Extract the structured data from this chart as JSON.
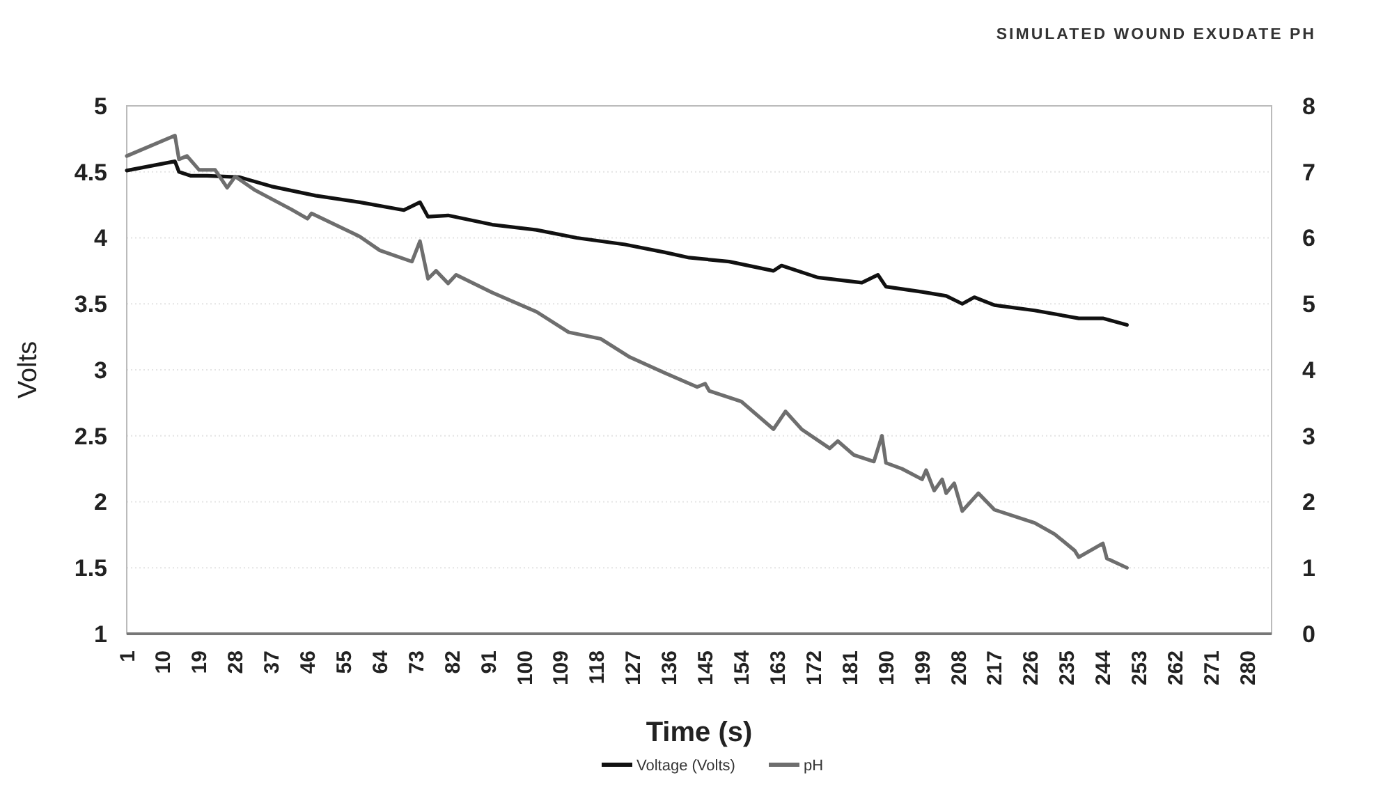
{
  "chart_data": {
    "type": "line",
    "title": "SIMULATED WOUND EXUDATE PH",
    "xlabel": "Time (s)",
    "ylabel": "Volts",
    "xlim": [
      1,
      286
    ],
    "xticks": [
      1,
      10,
      19,
      28,
      37,
      46,
      55,
      64,
      73,
      82,
      91,
      100,
      109,
      118,
      127,
      136,
      145,
      154,
      163,
      172,
      181,
      190,
      199,
      208,
      217,
      226,
      235,
      244,
      253,
      262,
      271,
      280
    ],
    "ylim": [
      1,
      5
    ],
    "yticks": [
      1,
      1.5,
      2,
      2.5,
      3,
      3.5,
      4,
      4.5,
      5
    ],
    "y2lim": [
      0,
      8
    ],
    "y2ticks": [
      0,
      1,
      2,
      3,
      4,
      5,
      6,
      7,
      8
    ],
    "grid": "y",
    "legend": "bottom",
    "marker": "none",
    "line_style": "solid",
    "series": [
      {
        "name": "Voltage (Volts)",
        "color": "#111111",
        "x": [
          1,
          13,
          14,
          17,
          21,
          29,
          37,
          48,
          59,
          70,
          74,
          76,
          81,
          92,
          103,
          113,
          125,
          135,
          141,
          151,
          162,
          164,
          173,
          184,
          188,
          190,
          199,
          205,
          209,
          212,
          217,
          227,
          238,
          244,
          250
        ],
        "values": [
          4.51,
          4.58,
          4.5,
          4.47,
          4.47,
          4.46,
          4.39,
          4.32,
          4.27,
          4.21,
          4.27,
          4.16,
          4.17,
          4.1,
          4.06,
          4.0,
          3.95,
          3.89,
          3.85,
          3.82,
          3.75,
          3.79,
          3.7,
          3.66,
          3.72,
          3.63,
          3.59,
          3.56,
          3.5,
          3.55,
          3.49,
          3.45,
          3.39,
          3.39,
          3.34
        ]
      },
      {
        "name": "pH",
        "color": "#6e6e6e",
        "axis": "y2",
        "x": [
          1,
          13,
          14,
          16,
          19,
          23,
          26,
          28,
          33,
          42,
          46,
          47,
          59,
          64,
          72,
          74,
          76,
          78,
          81,
          83,
          92,
          103,
          111,
          119,
          126,
          135,
          143,
          145,
          146,
          154,
          162,
          165,
          169,
          176,
          178,
          182,
          187,
          189,
          190,
          194,
          199,
          200,
          202,
          204,
          205,
          207,
          209,
          213,
          217,
          227,
          232,
          237,
          238,
          244,
          245,
          250
        ],
        "values": [
          7.24,
          7.55,
          7.19,
          7.24,
          7.03,
          7.03,
          6.76,
          6.93,
          6.72,
          6.43,
          6.29,
          6.37,
          6.02,
          5.81,
          5.64,
          5.95,
          5.38,
          5.5,
          5.31,
          5.44,
          5.17,
          4.88,
          4.57,
          4.47,
          4.2,
          3.95,
          3.74,
          3.79,
          3.68,
          3.52,
          3.1,
          3.37,
          3.1,
          2.81,
          2.92,
          2.71,
          2.61,
          3.0,
          2.59,
          2.5,
          2.34,
          2.48,
          2.17,
          2.34,
          2.13,
          2.28,
          1.86,
          2.13,
          1.88,
          1.68,
          1.51,
          1.26,
          1.16,
          1.37,
          1.14,
          1.0
        ]
      }
    ]
  }
}
